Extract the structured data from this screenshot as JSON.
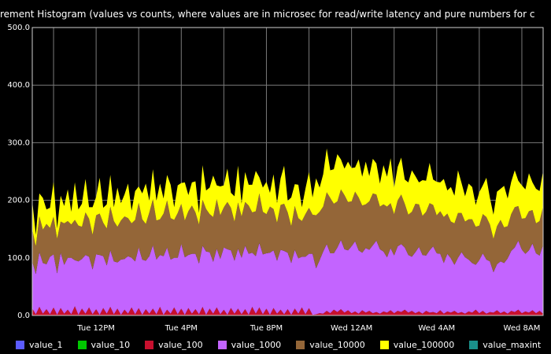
{
  "chart_data": {
    "type": "area",
    "stacked": true,
    "title": "rement Histogram (values vs counts, where values are in microsec for read/write latency and pure numbers for c",
    "ylim": [
      0,
      500
    ],
    "yticks": [
      "0.0",
      "100.0",
      "200.0",
      "300.0",
      "400.0",
      "500.0"
    ],
    "xticks": [
      "Tue 12PM",
      "Tue  4PM",
      "Tue  8PM",
      "Wed 12AM",
      "Wed  4AM",
      "Wed  8AM"
    ],
    "x_start": "Tue 9AM",
    "x_end": "Wed 9AM",
    "x_step_minutes": 10,
    "grid": true,
    "legend_position": "bottom",
    "series": [
      {
        "name": "value_1",
        "color": "#5b5bff",
        "values": [
          0,
          0,
          0,
          0,
          0,
          0,
          0,
          0,
          0,
          0,
          0,
          0,
          0,
          0,
          0,
          0,
          0,
          0,
          0,
          0,
          0,
          0,
          0,
          0,
          0,
          0,
          0,
          0,
          0,
          0,
          0,
          0,
          0,
          0,
          0,
          0,
          0,
          0,
          0,
          0,
          0,
          0,
          0,
          0,
          0,
          0,
          0,
          0,
          0,
          0,
          0,
          0,
          0,
          0,
          0,
          0,
          0,
          0,
          0,
          0,
          0,
          0,
          0,
          0,
          0,
          0,
          0,
          0,
          0,
          0,
          0,
          0,
          0,
          0,
          0,
          0,
          0,
          0,
          0,
          0,
          0,
          0,
          0,
          0,
          0,
          0,
          0,
          0,
          0,
          0,
          0,
          0,
          0,
          0,
          0,
          0,
          0,
          0,
          0,
          0,
          0,
          0,
          0,
          0,
          0,
          0,
          0,
          0,
          0,
          0,
          0,
          0,
          0,
          0,
          0,
          0,
          0,
          0,
          0,
          0,
          0,
          0,
          0,
          0,
          0,
          0,
          0,
          0,
          0,
          0,
          0,
          0,
          0,
          0,
          0,
          0,
          0,
          0,
          0,
          0,
          0,
          0,
          0,
          0,
          0
        ]
      },
      {
        "name": "value_10",
        "color": "#00c800",
        "values": [
          0,
          0,
          0,
          0,
          0,
          0,
          0,
          0,
          0,
          0,
          0,
          0,
          0,
          0,
          0,
          0,
          0,
          0,
          0,
          0,
          0,
          0,
          0,
          0,
          0,
          0,
          0,
          0,
          0,
          0,
          0,
          0,
          0,
          0,
          0,
          0,
          0,
          0,
          0,
          0,
          0,
          0,
          0,
          0,
          0,
          0,
          0,
          0,
          0,
          0,
          0,
          0,
          0,
          0,
          0,
          0,
          0,
          0,
          0,
          0,
          0,
          0,
          0,
          0,
          0,
          0,
          0,
          0,
          0,
          0,
          0,
          0,
          0,
          0,
          0,
          0,
          0,
          0,
          0,
          0,
          0,
          0,
          0,
          0,
          0,
          0,
          0,
          0,
          0,
          0,
          0,
          0,
          0,
          0,
          0,
          0,
          0,
          0,
          0,
          0,
          0,
          0,
          0,
          0,
          0,
          0,
          0,
          0,
          0,
          0,
          0,
          0,
          0,
          0,
          0,
          0,
          0,
          0,
          0,
          0,
          0,
          0,
          0,
          0,
          0,
          0,
          0,
          0,
          0,
          0,
          0,
          0,
          0,
          0,
          0,
          0,
          0,
          0,
          0,
          0,
          0,
          0,
          0,
          0,
          0
        ]
      },
      {
        "name": "value_100",
        "color": "#c8102e",
        "values": [
          12,
          2,
          15,
          3,
          11,
          2,
          14,
          1,
          13,
          3,
          10,
          2,
          16,
          1,
          12,
          3,
          14,
          2,
          11,
          1,
          13,
          3,
          15,
          2,
          12,
          1,
          10,
          3,
          14,
          2,
          13,
          1,
          11,
          3,
          12,
          2,
          15,
          1,
          10,
          3,
          14,
          2,
          12,
          1,
          13,
          3,
          11,
          2,
          15,
          1,
          12,
          3,
          14,
          2,
          10,
          1,
          13,
          3,
          12,
          2,
          11,
          1,
          15,
          3,
          14,
          2,
          12,
          1,
          13,
          3,
          10,
          2,
          11,
          1,
          12,
          3,
          14,
          2,
          13,
          1,
          2,
          4,
          3,
          8,
          4,
          10,
          6,
          11,
          5,
          9,
          4,
          7,
          3,
          9,
          5,
          8,
          4,
          6,
          3,
          7,
          5,
          9,
          4,
          8,
          6,
          10,
          5,
          8,
          4,
          7,
          3,
          8,
          5,
          6,
          4,
          9,
          3,
          7,
          5,
          8,
          4,
          6,
          3,
          7,
          5,
          10,
          4,
          8,
          3,
          6,
          5,
          9,
          4,
          7,
          3,
          8,
          6,
          10,
          4,
          7,
          5,
          9,
          4,
          8,
          3,
          7,
          5
        ]
      },
      {
        "name": "value_1000",
        "color": "#c364ff",
        "values": [
          82,
          70,
          95,
          88,
          78,
          100,
          92,
          72,
          96,
          85,
          90,
          98,
          80,
          93,
          86,
          102,
          88,
          78,
          95,
          104,
          90,
          84,
          98,
          92,
          80,
          96,
          88,
          100,
          86,
          92,
          105,
          96,
          84,
          100,
          110,
          95,
          90,
          102,
          108,
          94,
          86,
          98,
          112,
          100,
          92,
          104,
          96,
          88,
          106,
          110,
          98,
          90,
          102,
          96,
          108,
          114,
          100,
          92,
          104,
          98,
          110,
          106,
          94,
          100,
          112,
          104,
          96,
          108,
          100,
          92,
          104,
          110,
          98,
          90,
          102,
          96,
          88,
          100,
          94,
          106,
          80,
          92,
          108,
          116,
          104,
          98,
          112,
          120,
          110,
          104,
          116,
          122,
          110,
          100,
          112,
          106,
          118,
          124,
          112,
          104,
          96,
          108,
          100,
          112,
          118,
          108,
          100,
          94,
          106,
          112,
          102,
          96,
          108,
          114,
          104,
          98,
          88,
          100,
          94,
          80,
          96,
          104,
          98,
          90,
          86,
          78,
          92,
          100,
          94,
          88,
          70,
          80,
          90,
          84,
          96,
          104,
          112,
          120,
          110,
          100,
          108,
          116,
          104,
          96,
          120
        ]
      },
      {
        "name": "value_10000",
        "color": "#946638",
        "values": [
          55,
          48,
          62,
          58,
          70,
          50,
          66,
          60,
          54,
          72,
          64,
          58,
          70,
          62,
          56,
          74,
          66,
          60,
          68,
          72,
          58,
          64,
          76,
          70,
          62,
          68,
          74,
          66,
          60,
          72,
          78,
          70,
          64,
          76,
          80,
          68,
          62,
          74,
          82,
          72,
          66,
          78,
          70,
          64,
          76,
          84,
          72,
          68,
          80,
          74,
          66,
          78,
          86,
          76,
          70,
          82,
          74,
          68,
          80,
          72,
          76,
          84,
          70,
          78,
          86,
          74,
          68,
          80,
          72,
          66,
          78,
          82,
          70,
          64,
          76,
          70,
          62,
          74,
          80,
          68,
          92,
          84,
          78,
          90,
          96,
          86,
          80,
          88,
          94,
          84,
          78,
          86,
          92,
          82,
          76,
          84,
          90,
          80,
          74,
          82,
          88,
          78,
          72,
          80,
          86,
          76,
          70,
          78,
          84,
          74,
          68,
          76,
          82,
          72,
          66,
          74,
          80,
          70,
          64,
          72,
          78,
          68,
          62,
          70,
          76,
          66,
          60,
          68,
          74,
          64,
          58,
          66,
          72,
          62,
          56,
          64,
          70,
          60,
          54,
          62,
          68,
          58,
          52,
          60,
          66
        ]
      },
      {
        "name": "value_100000",
        "color": "#ffff00",
        "values": [
          50,
          20,
          40,
          55,
          25,
          35,
          60,
          18,
          45,
          30,
          55,
          22,
          65,
          28,
          40,
          58,
          20,
          48,
          32,
          62,
          26,
          42,
          55,
          24,
          68,
          30,
          38,
          60,
          22,
          50,
          28,
          45,
          70,
          20,
          52,
          34,
          62,
          26,
          44,
          58,
          22,
          48,
          36,
          66,
          28,
          40,
          54,
          20,
          60,
          32,
          46,
          72,
          24,
          50,
          38,
          58,
          26,
          44,
          64,
          22,
          52,
          36,
          48,
          70,
          28,
          42,
          56,
          24,
          60,
          34,
          46,
          66,
          20,
          50,
          38,
          58,
          24,
          44,
          62,
          30,
          64,
          42,
          56,
          76,
          48,
          60,
          82,
          52,
          46,
          70,
          58,
          42,
          66,
          50,
          74,
          44,
          60,
          54,
          40,
          68,
          52,
          78,
          46,
          58,
          64,
          42,
          56,
          72,
          48,
          38,
          62,
          54,
          70,
          44,
          58,
          50,
          66,
          40,
          60,
          48,
          74,
          52,
          44,
          62,
          56,
          38,
          58,
          50,
          68,
          46,
          42,
          60,
          54,
          72,
          48,
          56,
          64,
          44,
          58,
          50,
          66,
          48,
          60,
          52,
          62
        ]
      },
      {
        "name": "value_maxint",
        "color": "#1a8f8a",
        "values": [
          0,
          0,
          0,
          0,
          0,
          0,
          0,
          0,
          0,
          0,
          0,
          0,
          0,
          0,
          0,
          0,
          0,
          0,
          0,
          0,
          0,
          0,
          0,
          0,
          0,
          0,
          0,
          0,
          0,
          0,
          0,
          0,
          0,
          0,
          0,
          0,
          0,
          0,
          0,
          0,
          0,
          0,
          0,
          0,
          0,
          0,
          0,
          0,
          0,
          0,
          0,
          0,
          0,
          0,
          0,
          0,
          0,
          0,
          0,
          0,
          0,
          0,
          0,
          0,
          0,
          0,
          0,
          0,
          0,
          0,
          0,
          0,
          0,
          0,
          0,
          0,
          0,
          0,
          0,
          0,
          0,
          0,
          0,
          0,
          0,
          0,
          0,
          0,
          0,
          0,
          0,
          0,
          0,
          0,
          0,
          0,
          0,
          0,
          0,
          0,
          0,
          0,
          0,
          0,
          0,
          0,
          0,
          0,
          0,
          0,
          0,
          0,
          0,
          0,
          0,
          0,
          0,
          0,
          0,
          0,
          0,
          0,
          0,
          0,
          0,
          0,
          0,
          0,
          0,
          0,
          0,
          0,
          0,
          0,
          0,
          0,
          0,
          0,
          0,
          0,
          0,
          0,
          0,
          0,
          0
        ]
      }
    ]
  }
}
